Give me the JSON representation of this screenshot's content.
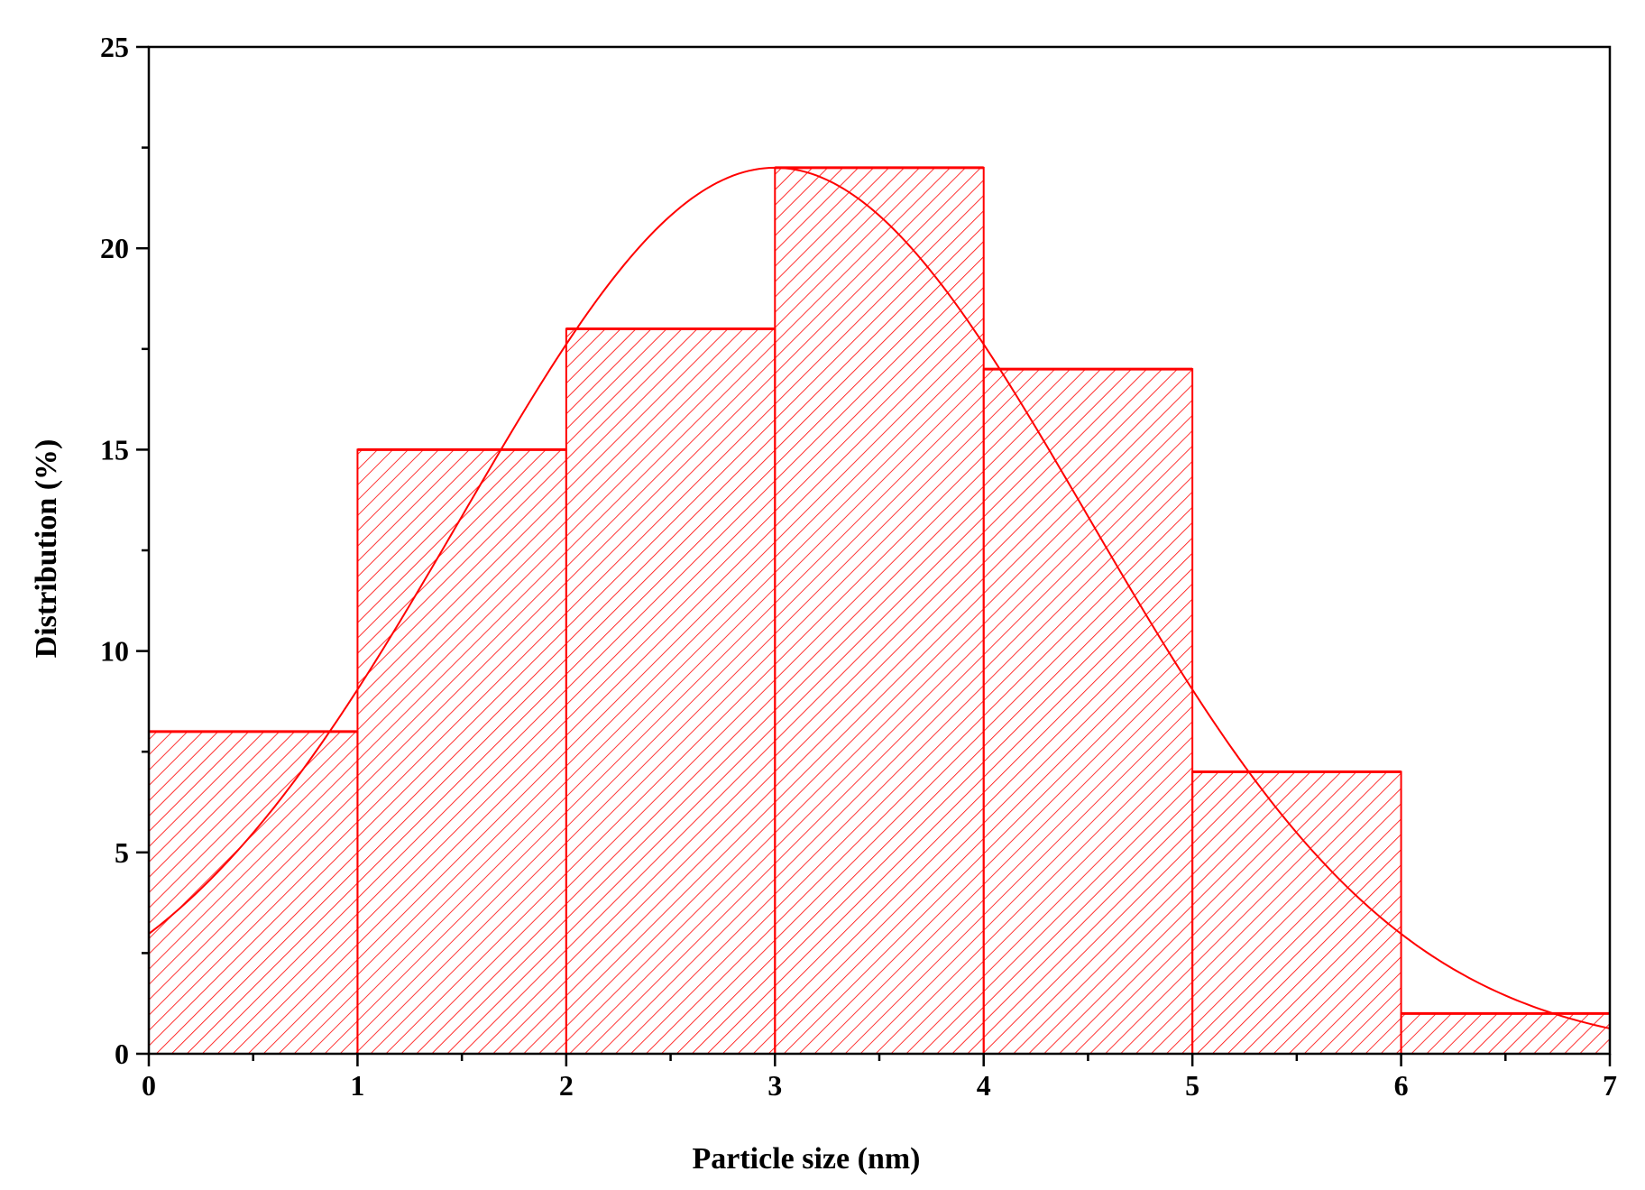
{
  "chart_data": {
    "type": "bar",
    "subtype": "histogram",
    "title": "",
    "xlabel": "Particle size (nm)",
    "ylabel": "Distribution (%)",
    "xlim": [
      0,
      7
    ],
    "ylim": [
      0,
      25
    ],
    "x_ticks": [
      "0",
      "1",
      "2",
      "3",
      "4",
      "5",
      "6",
      "7"
    ],
    "y_ticks": [
      "0",
      "5",
      "10",
      "15",
      "20",
      "25"
    ],
    "bins": [
      {
        "from": 0,
        "to": 1,
        "value": 8
      },
      {
        "from": 1,
        "to": 2,
        "value": 15
      },
      {
        "from": 2,
        "to": 3,
        "value": 18
      },
      {
        "from": 3,
        "to": 4,
        "value": 22
      },
      {
        "from": 4,
        "to": 5,
        "value": 17
      },
      {
        "from": 5,
        "to": 6,
        "value": 7
      },
      {
        "from": 6,
        "to": 7,
        "value": 1
      }
    ],
    "fit_curve": {
      "type": "gaussian",
      "peak_x": 3.0,
      "peak_y": 22.0,
      "sigma": 1.5
    },
    "bar_fill": "diagonal-hatch",
    "grid": false,
    "legend": "none",
    "colors": {
      "bars": "#ff0000",
      "fit": "#ff0000",
      "axes": "#000000"
    }
  }
}
